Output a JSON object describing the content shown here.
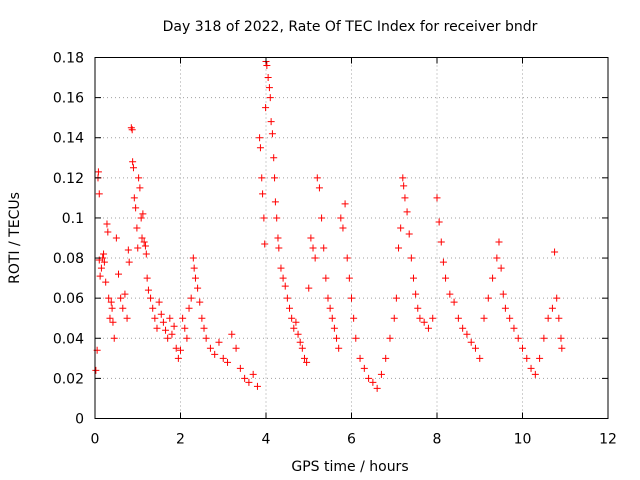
{
  "chart_data": {
    "type": "scatter",
    "title": "Day 318 of 2022, Rate Of TEC Index for receiver bndr",
    "xlabel": "GPS time / hours",
    "ylabel": "ROTI / TECUs",
    "xlim": [
      0,
      12
    ],
    "ylim": [
      0,
      0.18
    ],
    "x_ticks": [
      "0",
      "2",
      "4",
      "6",
      "8",
      "10",
      "12"
    ],
    "y_ticks": [
      "0",
      "0.02",
      "0.04",
      "0.06",
      "0.08",
      "0.1",
      "0.12",
      "0.14",
      "0.16",
      "0.18"
    ],
    "grid": true,
    "marker": "+",
    "series": [
      {
        "color": "#ff0000",
        "points": [
          [
            0.02,
            0.024
          ],
          [
            0.05,
            0.034
          ],
          [
            0.07,
            0.12
          ],
          [
            0.08,
            0.123
          ],
          [
            0.1,
            0.112
          ],
          [
            0.1,
            0.079
          ],
          [
            0.12,
            0.071
          ],
          [
            0.15,
            0.075
          ],
          [
            0.18,
            0.08
          ],
          [
            0.2,
            0.082
          ],
          [
            0.22,
            0.078
          ],
          [
            0.25,
            0.068
          ],
          [
            0.28,
            0.097
          ],
          [
            0.3,
            0.093
          ],
          [
            0.32,
            0.06
          ],
          [
            0.35,
            0.05
          ],
          [
            0.38,
            0.058
          ],
          [
            0.4,
            0.055
          ],
          [
            0.42,
            0.048
          ],
          [
            0.45,
            0.04
          ],
          [
            0.5,
            0.09
          ],
          [
            0.55,
            0.072
          ],
          [
            0.6,
            0.06
          ],
          [
            0.65,
            0.055
          ],
          [
            0.7,
            0.062
          ],
          [
            0.75,
            0.05
          ],
          [
            0.78,
            0.084
          ],
          [
            0.8,
            0.078
          ],
          [
            0.85,
            0.145
          ],
          [
            0.87,
            0.144
          ],
          [
            0.88,
            0.128
          ],
          [
            0.9,
            0.125
          ],
          [
            0.92,
            0.11
          ],
          [
            0.95,
            0.105
          ],
          [
            0.98,
            0.095
          ],
          [
            1.0,
            0.085
          ],
          [
            1.02,
            0.12
          ],
          [
            1.05,
            0.115
          ],
          [
            1.08,
            0.1
          ],
          [
            1.1,
            0.09
          ],
          [
            1.12,
            0.102
          ],
          [
            1.15,
            0.088
          ],
          [
            1.18,
            0.086
          ],
          [
            1.2,
            0.082
          ],
          [
            1.22,
            0.07
          ],
          [
            1.25,
            0.064
          ],
          [
            1.3,
            0.06
          ],
          [
            1.35,
            0.055
          ],
          [
            1.4,
            0.05
          ],
          [
            1.45,
            0.045
          ],
          [
            1.5,
            0.058
          ],
          [
            1.55,
            0.052
          ],
          [
            1.6,
            0.048
          ],
          [
            1.65,
            0.044
          ],
          [
            1.7,
            0.04
          ],
          [
            1.75,
            0.05
          ],
          [
            1.8,
            0.042
          ],
          [
            1.85,
            0.046
          ],
          [
            1.9,
            0.035
          ],
          [
            1.95,
            0.03
          ],
          [
            2.0,
            0.034
          ],
          [
            2.05,
            0.05
          ],
          [
            2.1,
            0.045
          ],
          [
            2.15,
            0.04
          ],
          [
            2.2,
            0.055
          ],
          [
            2.25,
            0.06
          ],
          [
            2.3,
            0.08
          ],
          [
            2.32,
            0.075
          ],
          [
            2.35,
            0.07
          ],
          [
            2.4,
            0.065
          ],
          [
            2.45,
            0.058
          ],
          [
            2.5,
            0.05
          ],
          [
            2.55,
            0.045
          ],
          [
            2.6,
            0.04
          ],
          [
            2.7,
            0.035
          ],
          [
            2.8,
            0.032
          ],
          [
            2.9,
            0.038
          ],
          [
            3.0,
            0.03
          ],
          [
            3.1,
            0.028
          ],
          [
            3.2,
            0.042
          ],
          [
            3.3,
            0.035
          ],
          [
            3.4,
            0.025
          ],
          [
            3.5,
            0.02
          ],
          [
            3.6,
            0.018
          ],
          [
            3.7,
            0.022
          ],
          [
            3.8,
            0.016
          ],
          [
            3.85,
            0.14
          ],
          [
            3.87,
            0.135
          ],
          [
            3.9,
            0.12
          ],
          [
            3.92,
            0.112
          ],
          [
            3.95,
            0.1
          ],
          [
            3.97,
            0.087
          ],
          [
            3.99,
            0.155
          ],
          [
            4.0,
            0.178
          ],
          [
            4.02,
            0.176
          ],
          [
            4.05,
            0.17
          ],
          [
            4.08,
            0.165
          ],
          [
            4.1,
            0.16
          ],
          [
            4.12,
            0.148
          ],
          [
            4.15,
            0.142
          ],
          [
            4.18,
            0.13
          ],
          [
            4.2,
            0.12
          ],
          [
            4.22,
            0.108
          ],
          [
            4.25,
            0.1
          ],
          [
            4.28,
            0.09
          ],
          [
            4.3,
            0.085
          ],
          [
            4.35,
            0.075
          ],
          [
            4.4,
            0.07
          ],
          [
            4.45,
            0.066
          ],
          [
            4.5,
            0.06
          ],
          [
            4.55,
            0.055
          ],
          [
            4.6,
            0.05
          ],
          [
            4.65,
            0.045
          ],
          [
            4.7,
            0.048
          ],
          [
            4.75,
            0.042
          ],
          [
            4.8,
            0.038
          ],
          [
            4.85,
            0.035
          ],
          [
            4.9,
            0.03
          ],
          [
            4.95,
            0.028
          ],
          [
            5.0,
            0.065
          ],
          [
            5.05,
            0.09
          ],
          [
            5.1,
            0.085
          ],
          [
            5.15,
            0.08
          ],
          [
            5.2,
            0.12
          ],
          [
            5.25,
            0.115
          ],
          [
            5.3,
            0.1
          ],
          [
            5.35,
            0.085
          ],
          [
            5.4,
            0.07
          ],
          [
            5.45,
            0.06
          ],
          [
            5.5,
            0.055
          ],
          [
            5.55,
            0.05
          ],
          [
            5.6,
            0.045
          ],
          [
            5.65,
            0.04
          ],
          [
            5.7,
            0.035
          ],
          [
            5.75,
            0.1
          ],
          [
            5.8,
            0.095
          ],
          [
            5.85,
            0.107
          ],
          [
            5.9,
            0.08
          ],
          [
            5.95,
            0.07
          ],
          [
            6.0,
            0.06
          ],
          [
            6.05,
            0.05
          ],
          [
            6.1,
            0.04
          ],
          [
            6.2,
            0.03
          ],
          [
            6.3,
            0.025
          ],
          [
            6.4,
            0.02
          ],
          [
            6.5,
            0.018
          ],
          [
            6.6,
            0.015
          ],
          [
            6.7,
            0.022
          ],
          [
            6.8,
            0.03
          ],
          [
            6.9,
            0.04
          ],
          [
            7.0,
            0.05
          ],
          [
            7.05,
            0.06
          ],
          [
            7.1,
            0.085
          ],
          [
            7.15,
            0.095
          ],
          [
            7.2,
            0.12
          ],
          [
            7.22,
            0.116
          ],
          [
            7.25,
            0.11
          ],
          [
            7.3,
            0.103
          ],
          [
            7.35,
            0.092
          ],
          [
            7.4,
            0.08
          ],
          [
            7.45,
            0.07
          ],
          [
            7.5,
            0.062
          ],
          [
            7.55,
            0.055
          ],
          [
            7.6,
            0.05
          ],
          [
            7.7,
            0.048
          ],
          [
            7.8,
            0.045
          ],
          [
            7.9,
            0.05
          ],
          [
            8.0,
            0.11
          ],
          [
            8.05,
            0.098
          ],
          [
            8.1,
            0.088
          ],
          [
            8.15,
            0.078
          ],
          [
            8.2,
            0.07
          ],
          [
            8.3,
            0.062
          ],
          [
            8.4,
            0.058
          ],
          [
            8.5,
            0.05
          ],
          [
            8.6,
            0.045
          ],
          [
            8.7,
            0.042
          ],
          [
            8.8,
            0.038
          ],
          [
            8.9,
            0.035
          ],
          [
            9.0,
            0.03
          ],
          [
            9.1,
            0.05
          ],
          [
            9.2,
            0.06
          ],
          [
            9.3,
            0.07
          ],
          [
            9.4,
            0.08
          ],
          [
            9.45,
            0.088
          ],
          [
            9.5,
            0.075
          ],
          [
            9.55,
            0.062
          ],
          [
            9.6,
            0.055
          ],
          [
            9.7,
            0.05
          ],
          [
            9.8,
            0.045
          ],
          [
            9.9,
            0.04
          ],
          [
            10.0,
            0.035
          ],
          [
            10.1,
            0.03
          ],
          [
            10.2,
            0.025
          ],
          [
            10.3,
            0.022
          ],
          [
            10.4,
            0.03
          ],
          [
            10.5,
            0.04
          ],
          [
            10.6,
            0.05
          ],
          [
            10.7,
            0.055
          ],
          [
            10.75,
            0.083
          ],
          [
            10.8,
            0.06
          ],
          [
            10.85,
            0.05
          ],
          [
            10.9,
            0.04
          ],
          [
            10.92,
            0.035
          ]
        ]
      }
    ]
  }
}
